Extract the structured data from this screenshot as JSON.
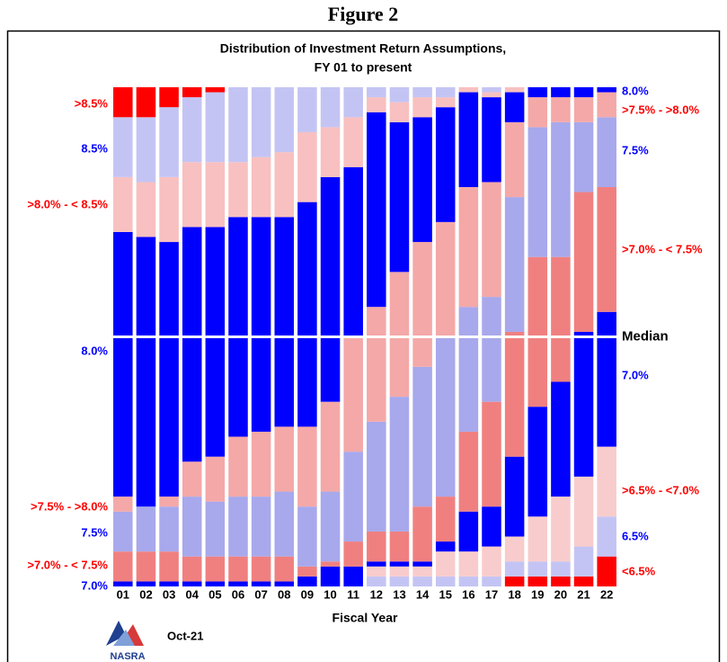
{
  "figure_label": "Figure 2",
  "chart_data": {
    "type": "stacked_bar",
    "title": [
      "Distribution of Investment Return Assumptions,",
      "FY 01 to present"
    ],
    "xlabel": "Fiscal Year",
    "categories": [
      "01",
      "02",
      "03",
      "04",
      "05",
      "06",
      "07",
      "08",
      "09",
      "10",
      "11",
      "12",
      "13",
      "14",
      "15",
      "16",
      "17",
      "18",
      "19",
      "20",
      "21",
      "22"
    ],
    "ylim": [
      0,
      100
    ],
    "median_line": {
      "value": 50,
      "label": "Median"
    },
    "series": [
      {
        "color": "#ff0000",
        "values": [
          0,
          0,
          0,
          0,
          0,
          0,
          0,
          0,
          0,
          0,
          0,
          0,
          0,
          0,
          0,
          0,
          0,
          2,
          2,
          2,
          2,
          6
        ]
      },
      {
        "color": "#c4c4f4",
        "values": [
          0,
          0,
          0,
          0,
          0,
          0,
          0,
          0,
          0,
          0,
          0,
          2,
          2,
          2,
          2,
          2,
          2,
          3,
          3,
          3,
          6,
          8
        ]
      },
      {
        "color": "#f8cccc",
        "values": [
          0,
          0,
          0,
          0,
          0,
          0,
          0,
          0,
          0,
          0,
          0,
          2,
          2,
          2,
          5,
          5,
          6,
          5,
          9,
          13,
          14,
          14
        ]
      },
      {
        "color": "#0000ff",
        "values": [
          1,
          1,
          1,
          1,
          1,
          1,
          1,
          1,
          2,
          4,
          4,
          1,
          1,
          1,
          2,
          8,
          8,
          16,
          22,
          23,
          29,
          27
        ]
      },
      {
        "color": "#f08080",
        "values": [
          6,
          6,
          6,
          5,
          5,
          5,
          5,
          5,
          2,
          1,
          5,
          6,
          6,
          11,
          9,
          16,
          21,
          25,
          30,
          25,
          28,
          25
        ]
      },
      {
        "color": "#a8a8ec",
        "values": [
          8,
          9,
          9,
          12,
          11,
          12,
          12,
          13,
          12,
          14,
          18,
          22,
          27,
          28,
          32,
          25,
          21,
          27,
          26,
          27,
          14,
          14
        ]
      },
      {
        "color": "#f4a8a8",
        "values": [
          3,
          0,
          2,
          7,
          9,
          12,
          13,
          13,
          16,
          18,
          23,
          23,
          25,
          25,
          23,
          24,
          23,
          15,
          6,
          5,
          5,
          5
        ]
      },
      {
        "color": "#0000ff",
        "values": [
          53,
          54,
          51,
          47,
          46,
          44,
          43,
          42,
          45,
          45,
          34,
          39,
          30,
          25,
          23,
          19,
          17,
          6,
          2,
          2,
          2,
          1
        ]
      },
      {
        "color": "#f8c0c0",
        "values": [
          11,
          11,
          13,
          13,
          13,
          11,
          12,
          13,
          14,
          10,
          10,
          3,
          4,
          4,
          2,
          1,
          1,
          1,
          0,
          0,
          0,
          0
        ]
      },
      {
        "color": "#c4c4f4",
        "values": [
          12,
          13,
          14,
          13,
          14,
          15,
          14,
          13,
          9,
          8,
          6,
          2,
          3,
          2,
          2,
          0,
          1,
          0,
          0,
          0,
          0,
          0
        ]
      },
      {
        "color": "#ff0000",
        "values": [
          6,
          6,
          4,
          2,
          1,
          0,
          0,
          0,
          0,
          0,
          0,
          0,
          0,
          0,
          0,
          0,
          0,
          0,
          0,
          0,
          0,
          0
        ]
      }
    ],
    "left_labels": [
      {
        "text": ">8.5%",
        "color": "#ff0000"
      },
      {
        "text": "8.5%",
        "color": "#0000ff"
      },
      {
        "text": ">8.0% - < 8.5%",
        "color": "#ff0000"
      },
      {
        "text": "8.0%",
        "color": "#0000ff"
      },
      {
        "text": ">7.5% - >8.0%",
        "color": "#ff0000"
      },
      {
        "text": "7.5%",
        "color": "#0000ff"
      },
      {
        "text": ">7.0% - < 7.5%",
        "color": "#ff0000"
      },
      {
        "text": "7.0%",
        "color": "#0000ff"
      }
    ],
    "right_labels": [
      {
        "text": "8.0%",
        "color": "#0000ff"
      },
      {
        "text": ">7.5% - >8.0%",
        "color": "#ff0000"
      },
      {
        "text": "7.5%",
        "color": "#0000ff"
      },
      {
        "text": ">7.0% - < 7.5%",
        "color": "#ff0000"
      },
      {
        "text": "7.0%",
        "color": "#0000ff"
      },
      {
        "text": ">6.5% - <7.0%",
        "color": "#ff0000"
      },
      {
        "text": "6.5%",
        "color": "#0000ff"
      },
      {
        "text": "<6.5%",
        "color": "#ff0000"
      }
    ]
  },
  "footer": {
    "date": "Oct-21",
    "logo_text": "NASRA"
  }
}
